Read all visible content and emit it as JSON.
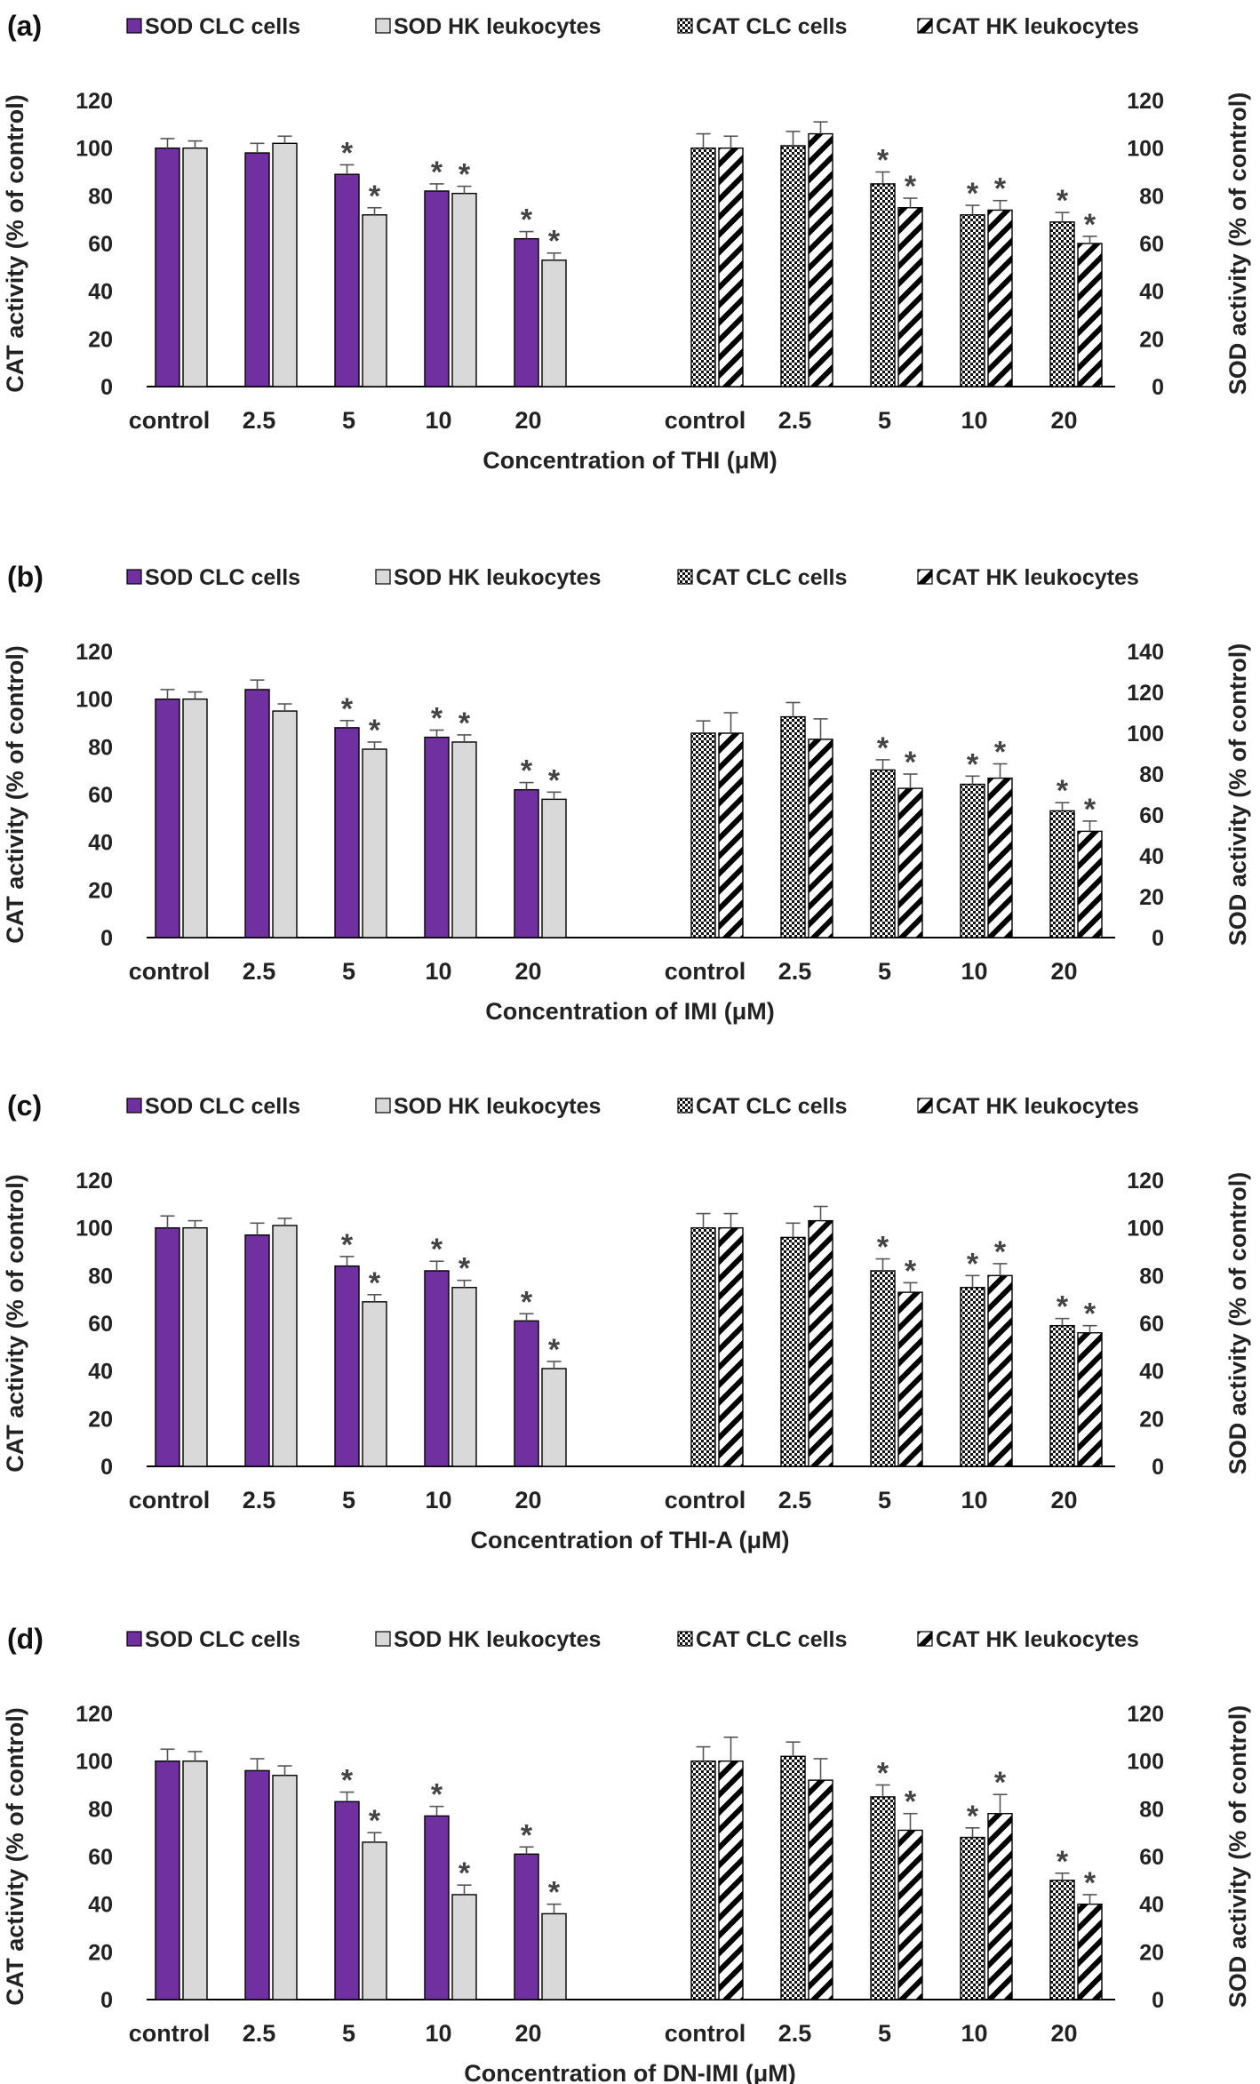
{
  "chart_data": [
    {
      "type": "bar",
      "panel_label": "(a)",
      "xlabel": "Concentration of THI (μM)",
      "ylabel_left": "CAT activity (% of control)",
      "ylabel_right": "SOD activity (% of control)",
      "ylim_left": [
        0,
        120
      ],
      "ylim_right": [
        0,
        120
      ],
      "yticks_left": [
        0,
        20,
        40,
        60,
        80,
        100,
        120
      ],
      "yticks_right": [
        0,
        20,
        40,
        60,
        80,
        100,
        120
      ],
      "legend": [
        "SOD  CLC cells",
        "SOD HK leukocytes",
        "CAT CLC cells",
        "CAT HK leukocytes"
      ],
      "categories": [
        "control",
        "2.5",
        "5",
        "10",
        "20"
      ],
      "series": [
        {
          "name": "SOD  CLC cells",
          "axis": "left",
          "group": 0,
          "values": [
            100,
            98,
            89,
            82,
            62
          ],
          "errors": [
            4,
            4,
            4,
            3,
            3
          ],
          "significant": [
            false,
            false,
            true,
            true,
            true
          ]
        },
        {
          "name": "SOD HK leukocytes",
          "axis": "left",
          "group": 0,
          "values": [
            100,
            102,
            72,
            81,
            53
          ],
          "errors": [
            3,
            3,
            3,
            3,
            3
          ],
          "significant": [
            false,
            false,
            true,
            true,
            true
          ]
        },
        {
          "name": "CAT CLC cells",
          "axis": "right",
          "group": 1,
          "values": [
            100,
            101,
            85,
            72,
            69
          ],
          "errors": [
            6,
            6,
            5,
            4,
            4
          ],
          "significant": [
            false,
            false,
            true,
            true,
            true
          ]
        },
        {
          "name": "CAT HK leukocytes",
          "axis": "right",
          "group": 1,
          "values": [
            100,
            106,
            75,
            74,
            60
          ],
          "errors": [
            5,
            5,
            4,
            4,
            3
          ],
          "significant": [
            false,
            false,
            true,
            true,
            true
          ]
        }
      ]
    },
    {
      "type": "bar",
      "panel_label": "(b)",
      "xlabel": "Concentration of IMI (μM)",
      "ylabel_left": "CAT activity (% of control)",
      "ylabel_right": "SOD activity (% of control)",
      "ylim_left": [
        0,
        120
      ],
      "ylim_right": [
        0,
        140
      ],
      "yticks_left": [
        0,
        20,
        40,
        60,
        80,
        100,
        120
      ],
      "yticks_right": [
        0,
        20,
        40,
        60,
        80,
        100,
        120,
        140
      ],
      "legend": [
        "SOD  CLC cells",
        "SOD HK leukocytes",
        "CAT CLC cells",
        "CAT HK leukocytes"
      ],
      "categories": [
        "control",
        "2.5",
        "5",
        "10",
        "20"
      ],
      "series": [
        {
          "name": "SOD  CLC cells",
          "axis": "left",
          "group": 0,
          "values": [
            100,
            104,
            88,
            84,
            62
          ],
          "errors": [
            4,
            4,
            3,
            3,
            3
          ],
          "significant": [
            false,
            false,
            true,
            true,
            true
          ]
        },
        {
          "name": "SOD HK leukocytes",
          "axis": "left",
          "group": 0,
          "values": [
            100,
            95,
            79,
            82,
            58
          ],
          "errors": [
            3,
            3,
            3,
            3,
            3
          ],
          "significant": [
            false,
            false,
            true,
            true,
            true
          ]
        },
        {
          "name": "CAT CLC cells",
          "axis": "right",
          "group": 1,
          "values": [
            100,
            108,
            82,
            75,
            62
          ],
          "errors": [
            6,
            7,
            5,
            4,
            4
          ],
          "significant": [
            false,
            false,
            true,
            true,
            true
          ]
        },
        {
          "name": "CAT HK leukocytes",
          "axis": "right",
          "group": 1,
          "values": [
            100,
            97,
            73,
            78,
            52
          ],
          "errors": [
            10,
            10,
            7,
            7,
            5
          ],
          "significant": [
            false,
            false,
            true,
            true,
            true
          ]
        }
      ]
    },
    {
      "type": "bar",
      "panel_label": "(c)",
      "xlabel": "Concentration of THI-A (μM)",
      "ylabel_left": "CAT activity (% of control)",
      "ylabel_right": "SOD activity (% of control)",
      "ylim_left": [
        0,
        120
      ],
      "ylim_right": [
        0,
        120
      ],
      "yticks_left": [
        0,
        20,
        40,
        60,
        80,
        100,
        120
      ],
      "yticks_right": [
        0,
        20,
        40,
        60,
        80,
        100,
        120
      ],
      "legend": [
        "SOD  CLC cells",
        "SOD HK leukocytes",
        "CAT CLC cells",
        "CAT HK leukocytes"
      ],
      "categories": [
        "control",
        "2.5",
        "5",
        "10",
        "20"
      ],
      "series": [
        {
          "name": "SOD  CLC cells",
          "axis": "left",
          "group": 0,
          "values": [
            100,
            97,
            84,
            82,
            61
          ],
          "errors": [
            5,
            5,
            4,
            4,
            3
          ],
          "significant": [
            false,
            false,
            true,
            true,
            true
          ]
        },
        {
          "name": "SOD HK leukocytes",
          "axis": "left",
          "group": 0,
          "values": [
            100,
            101,
            69,
            75,
            41
          ],
          "errors": [
            3,
            3,
            3,
            3,
            3
          ],
          "significant": [
            false,
            false,
            true,
            true,
            true
          ]
        },
        {
          "name": "CAT CLC cells",
          "axis": "right",
          "group": 1,
          "values": [
            100,
            96,
            82,
            75,
            59
          ],
          "errors": [
            6,
            6,
            5,
            5,
            3
          ],
          "significant": [
            false,
            false,
            true,
            true,
            true
          ]
        },
        {
          "name": "CAT HK leukocytes",
          "axis": "right",
          "group": 1,
          "values": [
            100,
            103,
            73,
            80,
            56
          ],
          "errors": [
            6,
            6,
            4,
            5,
            3
          ],
          "significant": [
            false,
            false,
            true,
            true,
            true
          ]
        }
      ]
    },
    {
      "type": "bar",
      "panel_label": "(d)",
      "xlabel": "Concentration of DN-IMI (μM)",
      "ylabel_left": "CAT activity (% of control)",
      "ylabel_right": "SOD activity (% of control)",
      "ylim_left": [
        0,
        120
      ],
      "ylim_right": [
        0,
        120
      ],
      "yticks_left": [
        0,
        20,
        40,
        60,
        80,
        100,
        120
      ],
      "yticks_right": [
        0,
        20,
        40,
        60,
        80,
        100,
        120
      ],
      "legend": [
        "SOD  CLC cells",
        "SOD HK leukocytes",
        "CAT CLC cells",
        "CAT HK leukocytes"
      ],
      "categories": [
        "control",
        "2.5",
        "5",
        "10",
        "20"
      ],
      "series": [
        {
          "name": "SOD  CLC cells",
          "axis": "left",
          "group": 0,
          "values": [
            100,
            96,
            83,
            77,
            61
          ],
          "errors": [
            5,
            5,
            4,
            4,
            3
          ],
          "significant": [
            false,
            false,
            true,
            true,
            true
          ]
        },
        {
          "name": "SOD HK leukocytes",
          "axis": "left",
          "group": 0,
          "values": [
            100,
            94,
            66,
            44,
            36
          ],
          "errors": [
            4,
            4,
            4,
            4,
            4
          ],
          "significant": [
            false,
            false,
            true,
            true,
            true
          ]
        },
        {
          "name": "CAT CLC cells",
          "axis": "right",
          "group": 1,
          "values": [
            100,
            102,
            85,
            68,
            50
          ],
          "errors": [
            6,
            6,
            5,
            4,
            3
          ],
          "significant": [
            false,
            false,
            true,
            true,
            true
          ]
        },
        {
          "name": "CAT HK leukocytes",
          "axis": "right",
          "group": 1,
          "values": [
            100,
            92,
            71,
            78,
            40
          ],
          "errors": [
            10,
            9,
            7,
            8,
            4
          ],
          "significant": [
            false,
            false,
            true,
            true,
            true
          ]
        }
      ]
    }
  ],
  "style": {
    "sod_clc_color": "#7030A0",
    "sod_hk_color": "#D9D9D9",
    "bar_stroke": "#000000",
    "axis_color": "#000000",
    "error_color": "#555555",
    "significance_marker": "*"
  }
}
